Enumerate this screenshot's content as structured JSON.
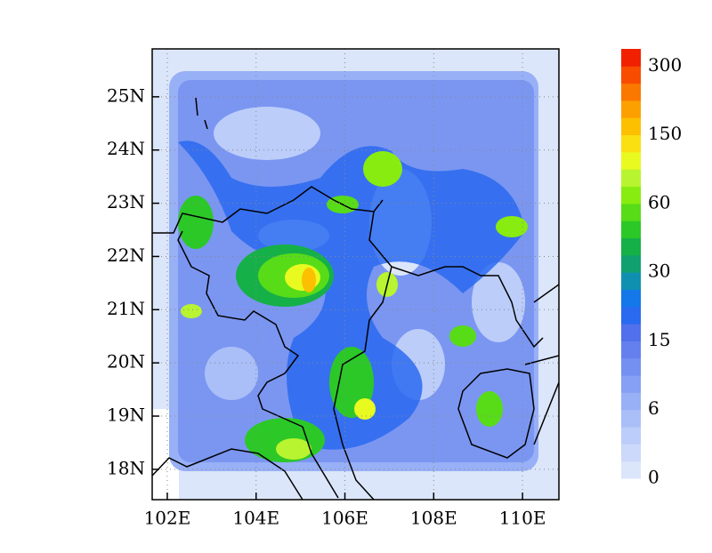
{
  "map": {
    "xticks": [
      {
        "value": 102,
        "label": "102E"
      },
      {
        "value": 104,
        "label": "104E"
      },
      {
        "value": 106,
        "label": "106E"
      },
      {
        "value": 108,
        "label": "108E"
      },
      {
        "value": 110,
        "label": "110E"
      }
    ],
    "yticks": [
      {
        "value": 18,
        "label": "18N"
      },
      {
        "value": 19,
        "label": "19N"
      },
      {
        "value": 20,
        "label": "20N"
      },
      {
        "value": 21,
        "label": "21N"
      },
      {
        "value": 22,
        "label": "22N"
      },
      {
        "value": 23,
        "label": "23N"
      },
      {
        "value": 24,
        "label": "24N"
      },
      {
        "value": 25,
        "label": "25N"
      }
    ],
    "xlim": [
      101.66,
      110.82
    ],
    "ylim": [
      17.43,
      25.9
    ],
    "grid": true
  },
  "colorbar": {
    "labels": [
      "0",
      "6",
      "15",
      "30",
      "60",
      "150",
      "300"
    ],
    "colors": [
      "#dce6fa",
      "#ccd9fa",
      "#bccdfa",
      "#aabff8",
      "#98b0f6",
      "#86a0f3",
      "#7490f0",
      "#6480ee",
      "#5070ec",
      "#2a6af0",
      "#1478e8",
      "#1090b0",
      "#10a070",
      "#16b048",
      "#2cc828",
      "#58dc18",
      "#88ec10",
      "#b8f430",
      "#e8fa20",
      "#fae010",
      "#fcc000",
      "#fca000",
      "#fa7800",
      "#f84c00",
      "#f02000"
    ]
  }
}
